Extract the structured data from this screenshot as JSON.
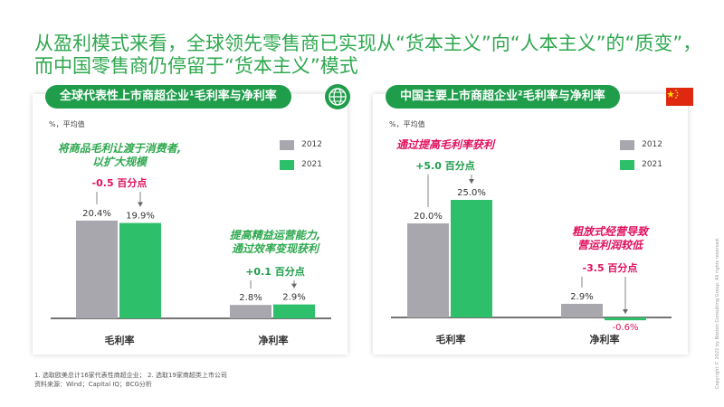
{
  "headline": "从盈利模式来看，全球领先零售商已实现从“货本主义”向“人本主义”的“质变”，而中国零售商仍停留于“货本主义”模式",
  "colors": {
    "y2012": "#a9a7ae",
    "y2021": "#2dbf6a",
    "accent_green": "#1f9d4b",
    "accent_red": "#e0115f",
    "flag_red": "#de2910"
  },
  "panels": [
    {
      "header": "全球代表性上市商超企业¹毛利率与净利率",
      "icon": "globe-icon",
      "unit": "%，平均值",
      "legend": [
        "2012",
        "2021"
      ],
      "notes": {
        "gross": [
          "将商品毛利让渡于消费者,",
          "以扩大规模"
        ],
        "gross_delta": "-0.5 百分点",
        "net": [
          "提高精益运营能力,",
          "通过效率变现获利"
        ],
        "net_delta": "+0.1 百分点"
      },
      "note_color": "#2fa84f"
    },
    {
      "header": "中国主要上市商超企业²毛利率与净利率",
      "icon": "china-flag-icon",
      "unit": "%，平均值",
      "legend": [
        "2012",
        "2021"
      ],
      "notes": {
        "gross": [
          "通过提高毛利率获利"
        ],
        "gross_delta": "+5.0 百分点",
        "net": [
          "粗放式经营导致",
          "营运利润较低"
        ],
        "net_delta": "-3.5 百分点"
      },
      "note_color": "#e0115f"
    }
  ],
  "chart_data": [
    {
      "type": "bar",
      "categories": [
        "毛利率",
        "净利率"
      ],
      "series": [
        {
          "name": "2012",
          "values": [
            20.4,
            2.8
          ]
        },
        {
          "name": "2021",
          "values": [
            19.9,
            2.9
          ]
        }
      ],
      "value_labels": [
        [
          "20.4%",
          "2.8%"
        ],
        [
          "19.9%",
          "2.9%"
        ]
      ],
      "ylim": [
        0,
        25
      ]
    },
    {
      "type": "bar",
      "categories": [
        "毛利率",
        "净利率"
      ],
      "series": [
        {
          "name": "2012",
          "values": [
            20.0,
            2.9
          ]
        },
        {
          "name": "2021",
          "values": [
            25.0,
            -0.6
          ]
        }
      ],
      "value_labels": [
        [
          "20.0%",
          "2.9%"
        ],
        [
          "25.0%",
          "-0.6%"
        ]
      ],
      "ylim": [
        -1,
        27
      ]
    }
  ],
  "footnotes": [
    "1. 选取欧美总计16家代表性商超企业；  2. 选取19家商超类上市公司",
    "资料来源：Wind；Capital IQ；BCG分析"
  ],
  "copyright": "Copyright © 2022 by Boston Consulting Group. All rights reserved."
}
